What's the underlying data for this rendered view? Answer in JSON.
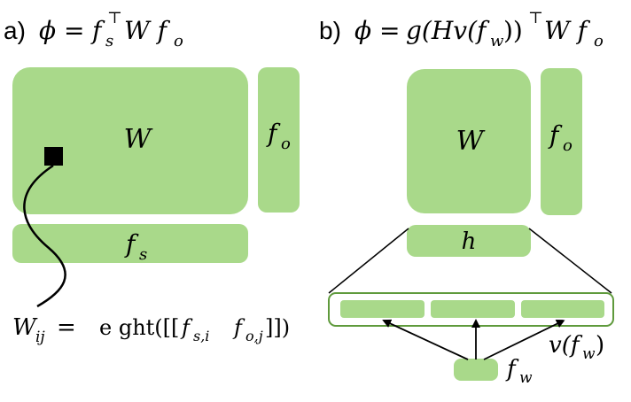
{
  "panel_a": {
    "label": "a)",
    "formula": "ϕ = f_s^⊤ W f_o",
    "box_w": "W",
    "box_fo": "f_o",
    "box_fs": "f_s",
    "weight_eq_lhs": "W_ij =",
    "weight_eq_rhs": "e ght([[f_s,i    f_o,j]])"
  },
  "panel_b": {
    "label": "b)",
    "formula": "ϕ = g(Hv(f_w))^⊤ W f_o",
    "box_w": "W",
    "box_fo": "f_o",
    "box_h": "h",
    "box_fw": "f_w",
    "vector_label": "v(f_w)"
  },
  "colors": {
    "fill": "#a9d98a",
    "outline": "#5f9a3c",
    "ink": "#000000"
  }
}
